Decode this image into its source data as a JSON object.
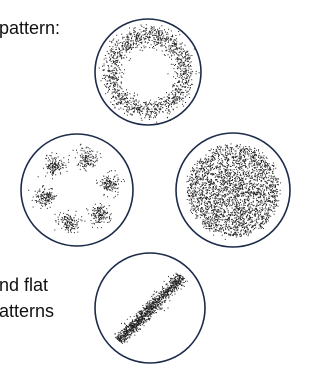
{
  "texts": {
    "top": "pattern:",
    "bottom_line_1": "nd flat",
    "bottom_line_2": "atterns"
  }
}
